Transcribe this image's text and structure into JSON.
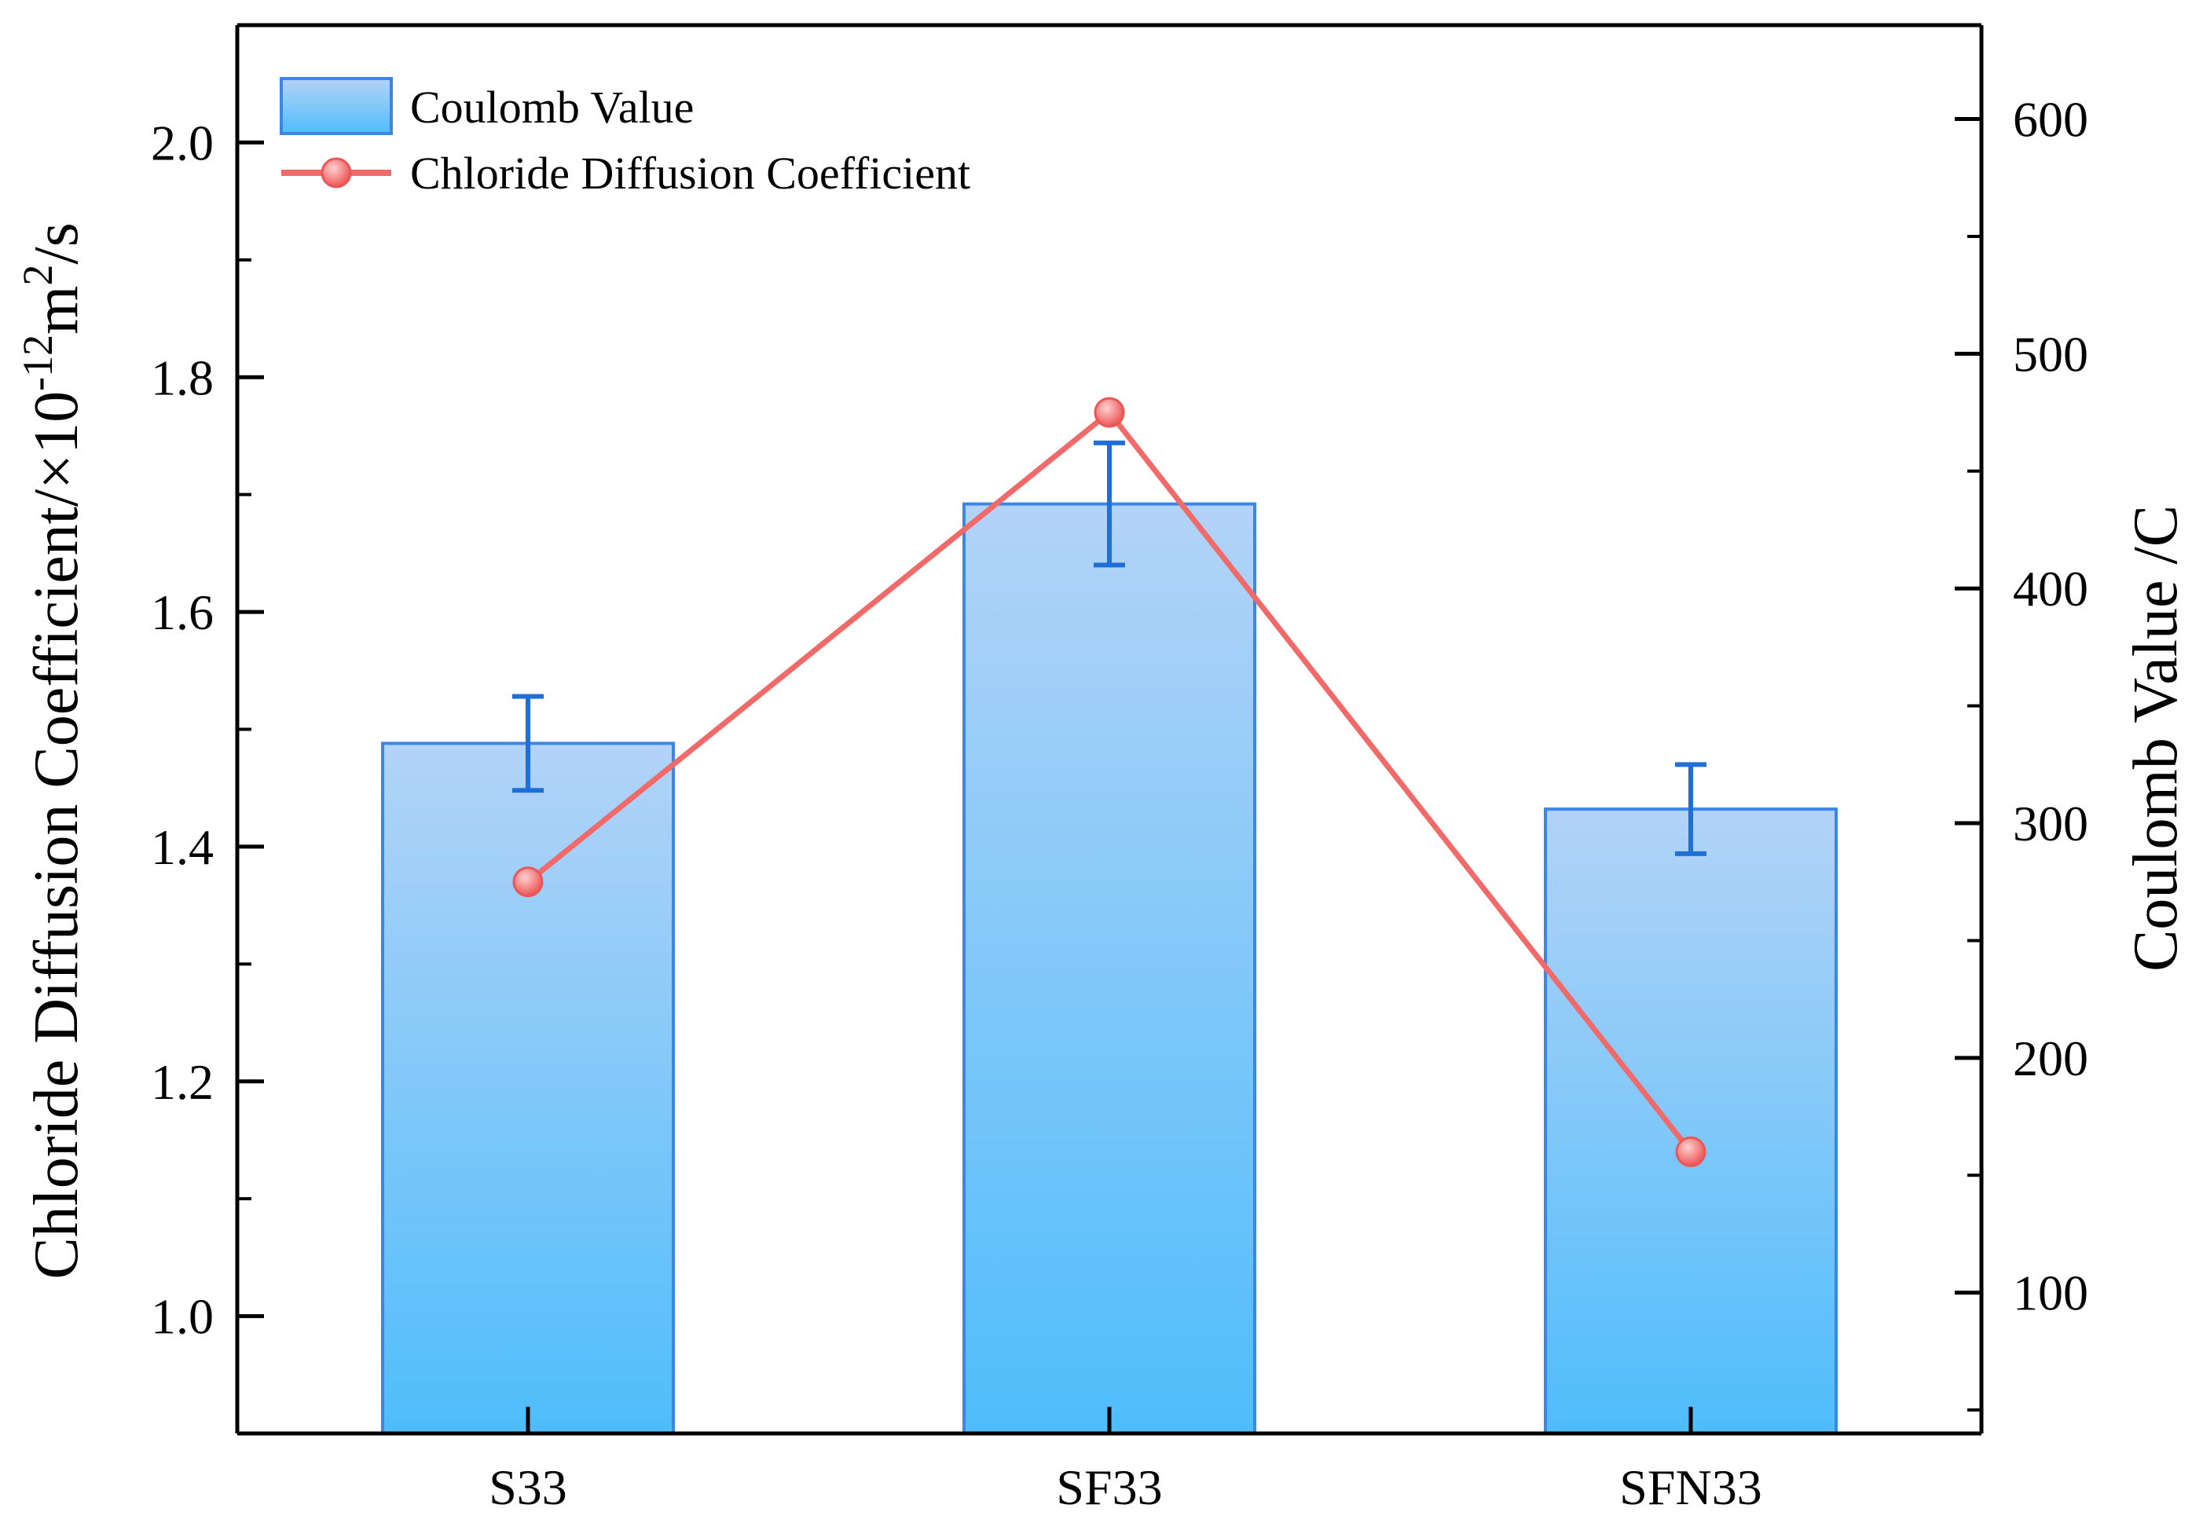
{
  "chart_data": {
    "type": "bar",
    "categories": [
      "S33",
      "SF33",
      "SFN33"
    ],
    "series": [
      {
        "name": "Coulomb Value",
        "kind": "bar",
        "axis": "right",
        "values": [
          334,
          436,
          306
        ],
        "error": [
          20,
          26,
          19
        ],
        "color": "#3b86e8"
      },
      {
        "name": "Chloride Diffusion Coefficient",
        "kind": "line",
        "axis": "left",
        "values": [
          1.37,
          1.77,
          1.14
        ],
        "color": "#f06a6a"
      }
    ],
    "y_left": {
      "label": "Chloride Diffusion Coefficient/×10",
      "label_sup1": "-12",
      "label_mid": "m",
      "label_sup2": "2",
      "label_end": "/s",
      "ylim": [
        0.9,
        2.1
      ],
      "ticks": [
        "1.0",
        "1.2",
        "1.4",
        "1.6",
        "1.8",
        "2.0"
      ],
      "tick_values": [
        1.0,
        1.2,
        1.4,
        1.6,
        1.8,
        2.0
      ]
    },
    "y_right": {
      "label": "Coulomb Value /C",
      "ylim": [
        40,
        640
      ],
      "ticks": [
        "100",
        "200",
        "300",
        "400",
        "500",
        "600"
      ],
      "tick_values": [
        100,
        200,
        300,
        400,
        500,
        600
      ]
    },
    "legend": {
      "placement": "top-left",
      "entries": [
        "Coulomb Value",
        "Chloride Diffusion Coefficient"
      ]
    }
  }
}
